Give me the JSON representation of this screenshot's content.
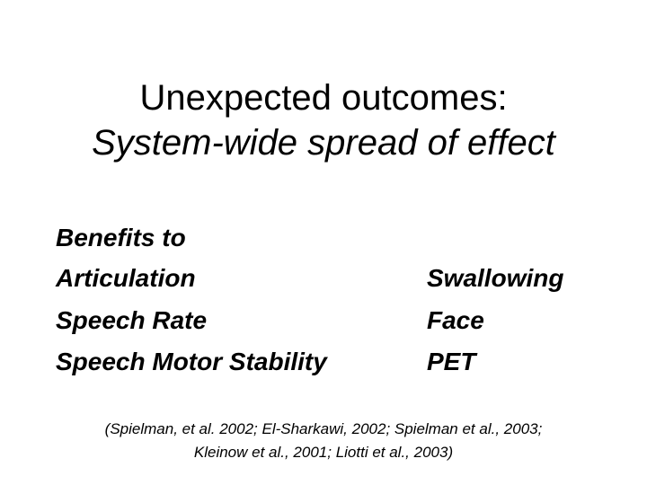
{
  "title": {
    "line1": "Unexpected outcomes:",
    "line2": "System-wide spread of effect"
  },
  "left_column": {
    "heading": "Benefits to",
    "items": [
      "Articulation",
      "Speech Rate",
      "Speech Motor Stability"
    ]
  },
  "right_column": {
    "items": [
      "Swallowing",
      "Face",
      "PET"
    ]
  },
  "citation": {
    "line1": "(Spielman, et al. 2002; El-Sharkawi, 2002; Spielman et al., 2003;",
    "line2": "Kleinow et al., 2001; Liotti et al., 2003)"
  }
}
